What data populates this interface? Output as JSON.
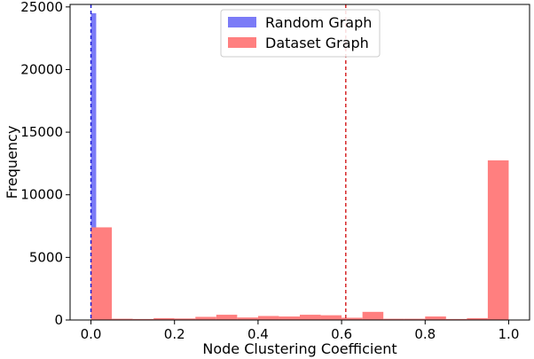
{
  "chart_data": {
    "type": "bar",
    "title": "",
    "xlabel": "Node Clustering Coefficient",
    "ylabel": "Frequency",
    "xlim": [
      -0.05,
      1.05
    ],
    "ylim": [
      0,
      25200
    ],
    "xticks": [
      0.0,
      0.2,
      0.4,
      0.6,
      0.8,
      1.0
    ],
    "xtick_labels": [
      "0.0",
      "0.2",
      "0.4",
      "0.6",
      "0.8",
      "1.0"
    ],
    "yticks": [
      0,
      5000,
      10000,
      15000,
      20000,
      25000
    ],
    "ytick_labels": [
      "0",
      "5000",
      "10000",
      "15000",
      "20000",
      "25000"
    ],
    "legend": {
      "position": "top-center"
    },
    "grid": false,
    "series": [
      {
        "name": "Random Graph",
        "color": "#7b7bf7",
        "bins": [
          {
            "x0": 0.0,
            "x1": 0.0125,
            "count": 24500
          }
        ],
        "mean_line": {
          "x": 0.0,
          "color": "#1f1fd6",
          "style": "dashed"
        }
      },
      {
        "name": "Dataset Graph",
        "color": "#ff7f7f",
        "bins": [
          {
            "x0": 0.0,
            "x1": 0.05,
            "count": 7400
          },
          {
            "x0": 0.05,
            "x1": 0.1,
            "count": 100
          },
          {
            "x0": 0.1,
            "x1": 0.15,
            "count": 80
          },
          {
            "x0": 0.15,
            "x1": 0.2,
            "count": 150
          },
          {
            "x0": 0.2,
            "x1": 0.25,
            "count": 120
          },
          {
            "x0": 0.25,
            "x1": 0.3,
            "count": 250
          },
          {
            "x0": 0.3,
            "x1": 0.35,
            "count": 420
          },
          {
            "x0": 0.35,
            "x1": 0.4,
            "count": 200
          },
          {
            "x0": 0.4,
            "x1": 0.45,
            "count": 320
          },
          {
            "x0": 0.45,
            "x1": 0.5,
            "count": 280
          },
          {
            "x0": 0.5,
            "x1": 0.55,
            "count": 420
          },
          {
            "x0": 0.55,
            "x1": 0.6,
            "count": 380
          },
          {
            "x0": 0.6,
            "x1": 0.65,
            "count": 180
          },
          {
            "x0": 0.65,
            "x1": 0.7,
            "count": 650
          },
          {
            "x0": 0.7,
            "x1": 0.75,
            "count": 100
          },
          {
            "x0": 0.75,
            "x1": 0.8,
            "count": 100
          },
          {
            "x0": 0.8,
            "x1": 0.85,
            "count": 280
          },
          {
            "x0": 0.85,
            "x1": 0.9,
            "count": 80
          },
          {
            "x0": 0.9,
            "x1": 0.95,
            "count": 150
          },
          {
            "x0": 0.95,
            "x1": 1.0,
            "count": 12750
          }
        ],
        "mean_line": {
          "x": 0.61,
          "color": "#d62728",
          "style": "dashed"
        }
      }
    ]
  }
}
